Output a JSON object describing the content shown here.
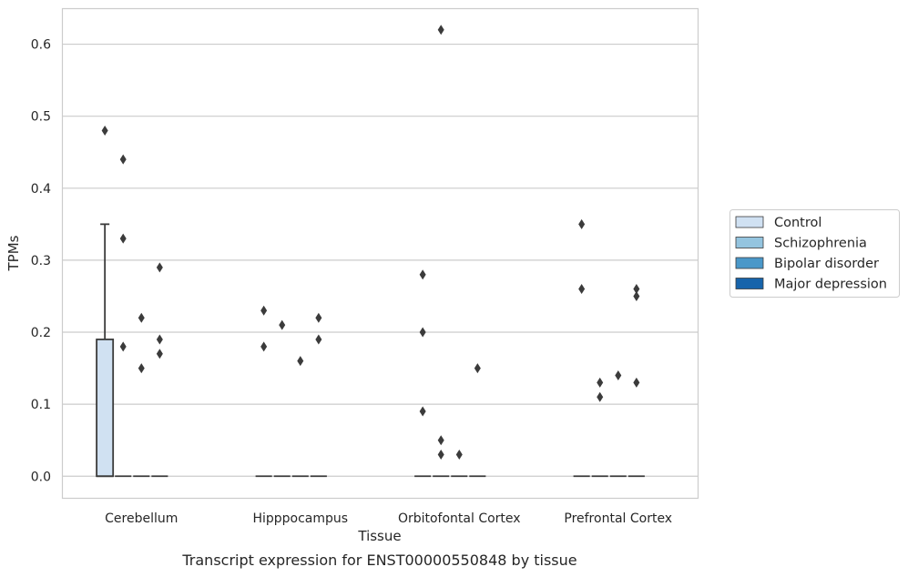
{
  "chart_data": {
    "type": "box",
    "xlabel": "Tissue",
    "ylabel": "TPMs",
    "caption": "Transcript expression for ENST00000550848 by tissue",
    "categories": [
      "Cerebellum",
      "Hipppocampus",
      "Orbitofontal Cortex",
      "Prefrontal Cortex"
    ],
    "ylim": [
      -0.03,
      0.65
    ],
    "yticks": [
      "0.0",
      "0.1",
      "0.2",
      "0.3",
      "0.4",
      "0.5",
      "0.6"
    ],
    "grid": "y",
    "legend_position": "right",
    "series": [
      {
        "name": "Control",
        "color": "#d0e1f2",
        "boxes": [
          {
            "q1": 0.0,
            "median": 0.0,
            "q3": 0.19,
            "whisker_low": 0.0,
            "whisker_high": 0.35,
            "fliers": [
              0.48
            ]
          },
          {
            "q1": 0.0,
            "median": 0.0,
            "q3": 0.0,
            "whisker_low": 0.0,
            "whisker_high": 0.0,
            "fliers": [
              0.23,
              0.18
            ]
          },
          {
            "q1": 0.0,
            "median": 0.0,
            "q3": 0.0,
            "whisker_low": 0.0,
            "whisker_high": 0.0,
            "fliers": [
              0.28,
              0.2,
              0.09
            ]
          },
          {
            "q1": 0.0,
            "median": 0.0,
            "q3": 0.0,
            "whisker_low": 0.0,
            "whisker_high": 0.0,
            "fliers": [
              0.35,
              0.26
            ]
          }
        ]
      },
      {
        "name": "Schizophrenia",
        "color": "#94c4df",
        "boxes": [
          {
            "q1": 0.0,
            "median": 0.0,
            "q3": 0.0,
            "whisker_low": 0.0,
            "whisker_high": 0.0,
            "fliers": [
              0.44,
              0.33,
              0.18
            ]
          },
          {
            "q1": 0.0,
            "median": 0.0,
            "q3": 0.0,
            "whisker_low": 0.0,
            "whisker_high": 0.0,
            "fliers": [
              0.21
            ]
          },
          {
            "q1": 0.0,
            "median": 0.0,
            "q3": 0.0,
            "whisker_low": 0.0,
            "whisker_high": 0.0,
            "fliers": [
              0.62,
              0.05,
              0.03
            ]
          },
          {
            "q1": 0.0,
            "median": 0.0,
            "q3": 0.0,
            "whisker_low": 0.0,
            "whisker_high": 0.0,
            "fliers": [
              0.13,
              0.11
            ]
          }
        ]
      },
      {
        "name": "Bipolar disorder",
        "color": "#4a98c9",
        "boxes": [
          {
            "q1": 0.0,
            "median": 0.0,
            "q3": 0.0,
            "whisker_low": 0.0,
            "whisker_high": 0.0,
            "fliers": [
              0.22,
              0.15
            ]
          },
          {
            "q1": 0.0,
            "median": 0.0,
            "q3": 0.0,
            "whisker_low": 0.0,
            "whisker_high": 0.0,
            "fliers": [
              0.16
            ]
          },
          {
            "q1": 0.0,
            "median": 0.0,
            "q3": 0.0,
            "whisker_low": 0.0,
            "whisker_high": 0.0,
            "fliers": [
              0.03
            ]
          },
          {
            "q1": 0.0,
            "median": 0.0,
            "q3": 0.0,
            "whisker_low": 0.0,
            "whisker_high": 0.0,
            "fliers": [
              0.14
            ]
          }
        ]
      },
      {
        "name": "Major depression",
        "color": "#1764ab",
        "boxes": [
          {
            "q1": 0.0,
            "median": 0.0,
            "q3": 0.0,
            "whisker_low": 0.0,
            "whisker_high": 0.0,
            "fliers": [
              0.29,
              0.19,
              0.17
            ]
          },
          {
            "q1": 0.0,
            "median": 0.0,
            "q3": 0.0,
            "whisker_low": 0.0,
            "whisker_high": 0.0,
            "fliers": [
              0.22,
              0.19
            ]
          },
          {
            "q1": 0.0,
            "median": 0.0,
            "q3": 0.0,
            "whisker_low": 0.0,
            "whisker_high": 0.0,
            "fliers": [
              0.15
            ]
          },
          {
            "q1": 0.0,
            "median": 0.0,
            "q3": 0.0,
            "whisker_low": 0.0,
            "whisker_high": 0.0,
            "fliers": [
              0.26,
              0.25,
              0.13
            ]
          }
        ]
      }
    ]
  }
}
